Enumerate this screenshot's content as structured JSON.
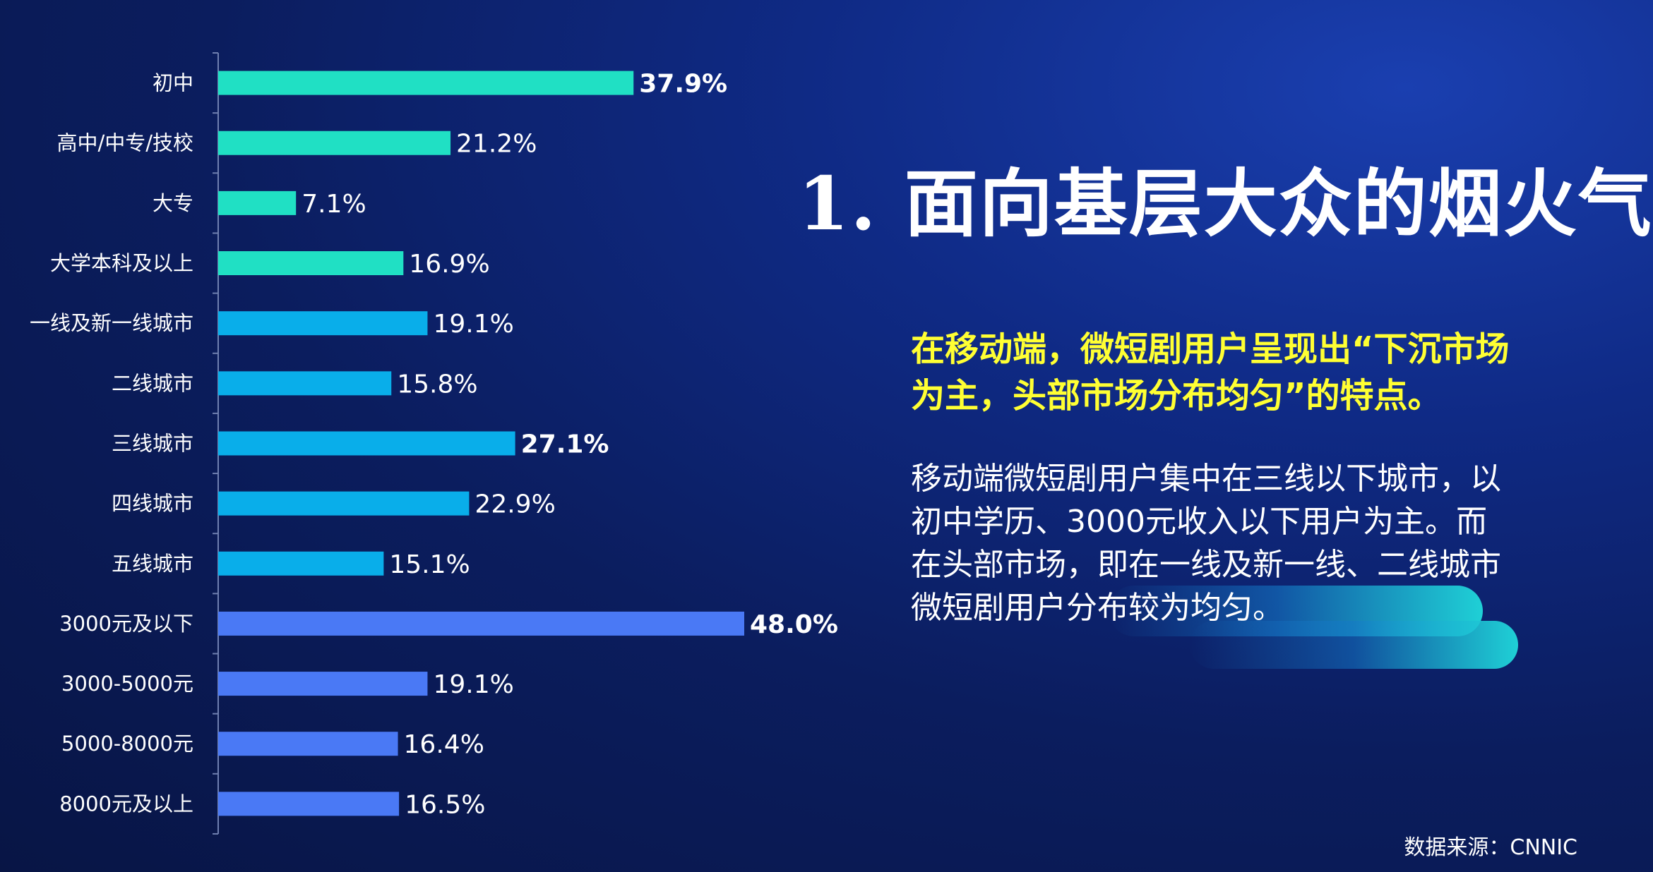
{
  "title": "1. 面向基层大众的烟火气",
  "highlight": "在移动端，微短剧用户呈现出“下沉市场为主，头部市场分布均匀”的特点。",
  "body": "移动端微短剧用户集中在三线以下城市，以初中学历、3000元收入以下用户为主。而在头部市场，即在一线及新一线、二线城市微短剧用户分布较为均匀。",
  "source": "数据来源：CNNIC",
  "colors": {
    "education": "#20e0c4",
    "city": "#09aeea",
    "income": "#4a79f5",
    "background": "#0b1d5e",
    "highlight_text": "#ffff33"
  },
  "chart_data": {
    "type": "bar",
    "orientation": "horizontal",
    "categories": [
      "初中",
      "高中/中专/技校",
      "大专",
      "大学本科及以上",
      "一线及新一线城市",
      "二线城市",
      "三线城市",
      "四线城市",
      "五线城市",
      "3000元及以下",
      "3000-5000元",
      "5000-8000元",
      "8000元及以上"
    ],
    "values": [
      37.9,
      21.2,
      7.1,
      16.9,
      19.1,
      15.8,
      27.1,
      22.9,
      15.1,
      48.0,
      19.1,
      16.4,
      16.5
    ],
    "value_labels": [
      "37.9%",
      "21.2%",
      "7.1%",
      "16.9%",
      "19.1%",
      "15.8%",
      "27.1%",
      "22.9%",
      "15.1%",
      "48.0%",
      "19.1%",
      "16.4%",
      "16.5%"
    ],
    "groups": [
      "education",
      "education",
      "education",
      "education",
      "city",
      "city",
      "city",
      "city",
      "city",
      "income",
      "income",
      "income",
      "income"
    ],
    "emphasized": [
      true,
      false,
      false,
      false,
      false,
      false,
      true,
      false,
      false,
      true,
      false,
      false,
      false
    ],
    "xlim": [
      0,
      50
    ],
    "grid": false,
    "legend": "none"
  }
}
